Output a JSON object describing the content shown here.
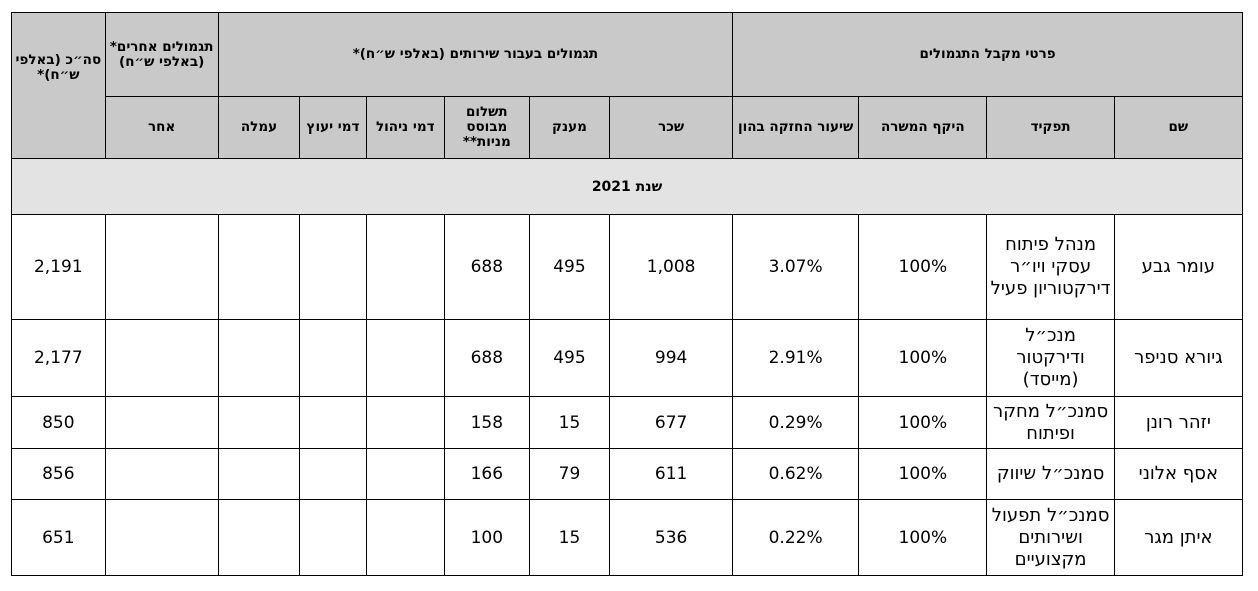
{
  "headers": {
    "recipient_group": "פרטי מקבל התגמולים",
    "services_group": "תגמולים בעבור שירותים (באלפי ש״ח)*",
    "other_group": "תגמולים אחרים* (באלפי ש״ח)",
    "total": "סה״כ (באלפי ש״ח)*",
    "name": "שם",
    "role": "תפקיד",
    "scope": "היקף המשרה",
    "equity": "שיעור החזקה בהון",
    "salary": "שכר",
    "bonus": "מענק",
    "share_payment": "תשלום מבוסס מניות**",
    "management_fee": "דמי ניהול",
    "consulting_fee": "דמי יעוץ",
    "commission": "עמלה",
    "other": "אחר"
  },
  "year_label": "שנת 2021",
  "rows": [
    {
      "name": "עומר גבע",
      "role": "מנהל פיתוח עסקי ויו״ר דירקטוריון פעיל",
      "scope": "100%",
      "equity": "3.07%",
      "salary": "1,008",
      "bonus": "495",
      "share_payment": "688",
      "management_fee": "",
      "consulting_fee": "",
      "commission": "",
      "other": "",
      "total": "2,191"
    },
    {
      "name": "גיורא סניפר",
      "role": "מנכ״ל ודירקטור (מייסד)",
      "scope": "100%",
      "equity": "2.91%",
      "salary": "994",
      "bonus": "495",
      "share_payment": "688",
      "management_fee": "",
      "consulting_fee": "",
      "commission": "",
      "other": "",
      "total": "2,177"
    },
    {
      "name": "יזהר רונן",
      "role": "סמנכ״ל מחקר ופיתוח",
      "scope": "100%",
      "equity": "0.29%",
      "salary": "677",
      "bonus": "15",
      "share_payment": "158",
      "management_fee": "",
      "consulting_fee": "",
      "commission": "",
      "other": "",
      "total": "850"
    },
    {
      "name": "אסף אלוני",
      "role": "סמנכ״ל שיווק",
      "scope": "100%",
      "equity": "0.62%",
      "salary": "611",
      "bonus": "79",
      "share_payment": "166",
      "management_fee": "",
      "consulting_fee": "",
      "commission": "",
      "other": "",
      "total": "856"
    },
    {
      "name": "איתן מגר",
      "role": "סמנכ״ל תפעול ושירותים מקצועיים",
      "scope": "100%",
      "equity": "0.22%",
      "salary": "536",
      "bonus": "15",
      "share_payment": "100",
      "management_fee": "",
      "consulting_fee": "",
      "commission": "",
      "other": "",
      "total": "651"
    }
  ]
}
